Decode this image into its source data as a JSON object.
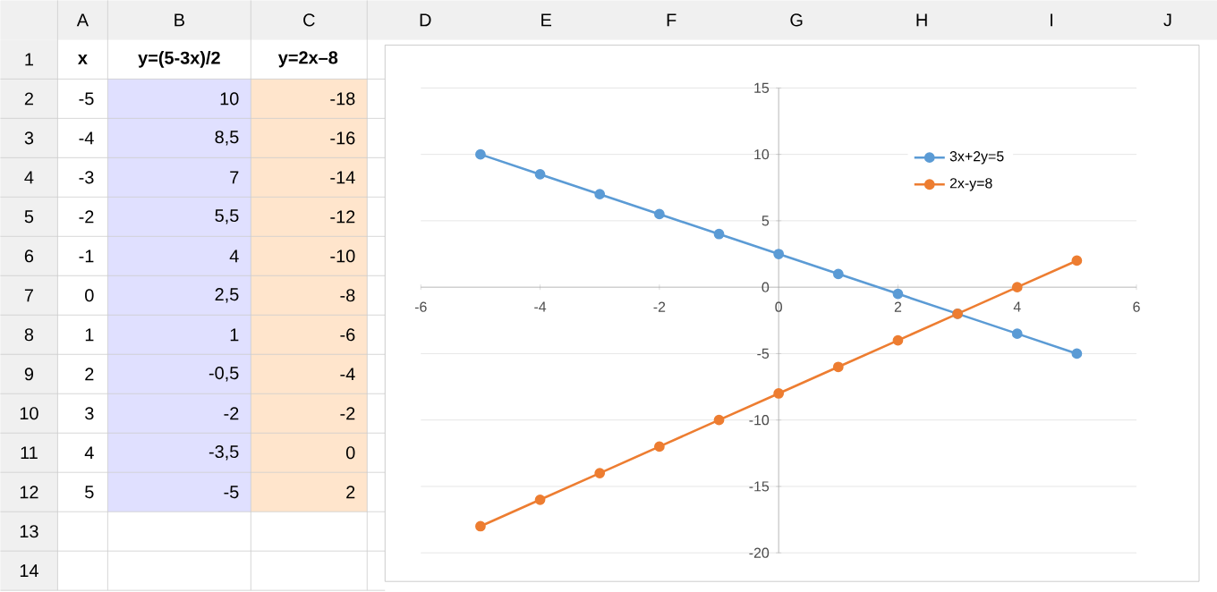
{
  "chart_data": {
    "type": "line",
    "x": [
      -5,
      -4,
      -3,
      -2,
      -1,
      0,
      1,
      2,
      3,
      4,
      5
    ],
    "series": [
      {
        "name": "3x+2y=5",
        "color": "#5b9bd5",
        "values": [
          10,
          8.5,
          7,
          5.5,
          4,
          2.5,
          1,
          -0.5,
          -2,
          -3.5,
          -5
        ]
      },
      {
        "name": "2x-y=8",
        "color": "#ed7d31",
        "values": [
          -18,
          -16,
          -14,
          -12,
          -10,
          -8,
          -6,
          -4,
          -2,
          0,
          2
        ]
      }
    ],
    "xlim": [
      -6,
      6
    ],
    "xticks": [
      -6,
      -4,
      -2,
      0,
      2,
      4,
      6
    ],
    "ylim": [
      -20,
      15
    ],
    "yticks": [
      -20,
      -15,
      -10,
      -5,
      0,
      5,
      10,
      15
    ],
    "grid": "y",
    "legend": "top right",
    "marker": "circle",
    "annotations": [
      "A",
      "B",
      "C",
      "D",
      "E",
      "F",
      "G",
      "H",
      "I",
      "J",
      "1",
      "2",
      "3",
      "4",
      "5",
      "6",
      "7",
      "8",
      "9",
      "10",
      "11",
      "12",
      "13",
      "14",
      "x",
      "y=(5-3x)/2",
      "y=2x–8",
      "-5",
      "10",
      "-18",
      "-4",
      "8,5",
      "-16",
      "-3",
      "7",
      "-14",
      "-2",
      "5,5",
      "-12",
      "-1",
      "4",
      "-10",
      "0",
      "2,5",
      "-8",
      "1",
      "1",
      "-6",
      "2",
      "-0,5",
      "-4",
      "3",
      "-2",
      "-2",
      "4",
      "-3,5",
      "0",
      "5",
      "-5",
      "2"
    ]
  }
}
